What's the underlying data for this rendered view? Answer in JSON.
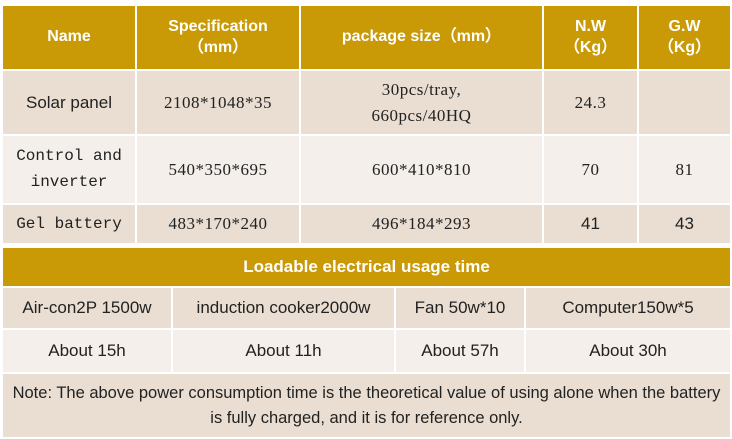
{
  "header": {
    "name": "Name",
    "spec": "Specification\n（mm）",
    "package": "package size（mm）",
    "nw": "N.W\n（Kg）",
    "gw": "G.W\n（Kg）"
  },
  "rows": [
    {
      "name": "Solar panel",
      "spec": "2108*1048*35",
      "package": "30pcs/tray,\n660pcs/40HQ",
      "nw": "24.3",
      "gw": ""
    },
    {
      "name": "Control and\ninverter",
      "spec": "540*350*695",
      "package": "600*410*810",
      "nw": "70",
      "gw": "81"
    },
    {
      "name": "Gel battery",
      "spec": "483*170*240",
      "package": "496*184*293",
      "nw": "41",
      "gw": "43"
    }
  ],
  "usage": {
    "title": "Loadable electrical usage time",
    "appliances": [
      "Air-con2P 1500w",
      "induction cooker2000w",
      "Fan 50w*10",
      "Computer150w*5"
    ],
    "times": [
      "About 15h",
      "About 11h",
      "About 57h",
      "About 30h"
    ],
    "note": "Note: The above power consumption time is the theoretical value of using alone when the battery is fully charged, and it is for reference only."
  }
}
